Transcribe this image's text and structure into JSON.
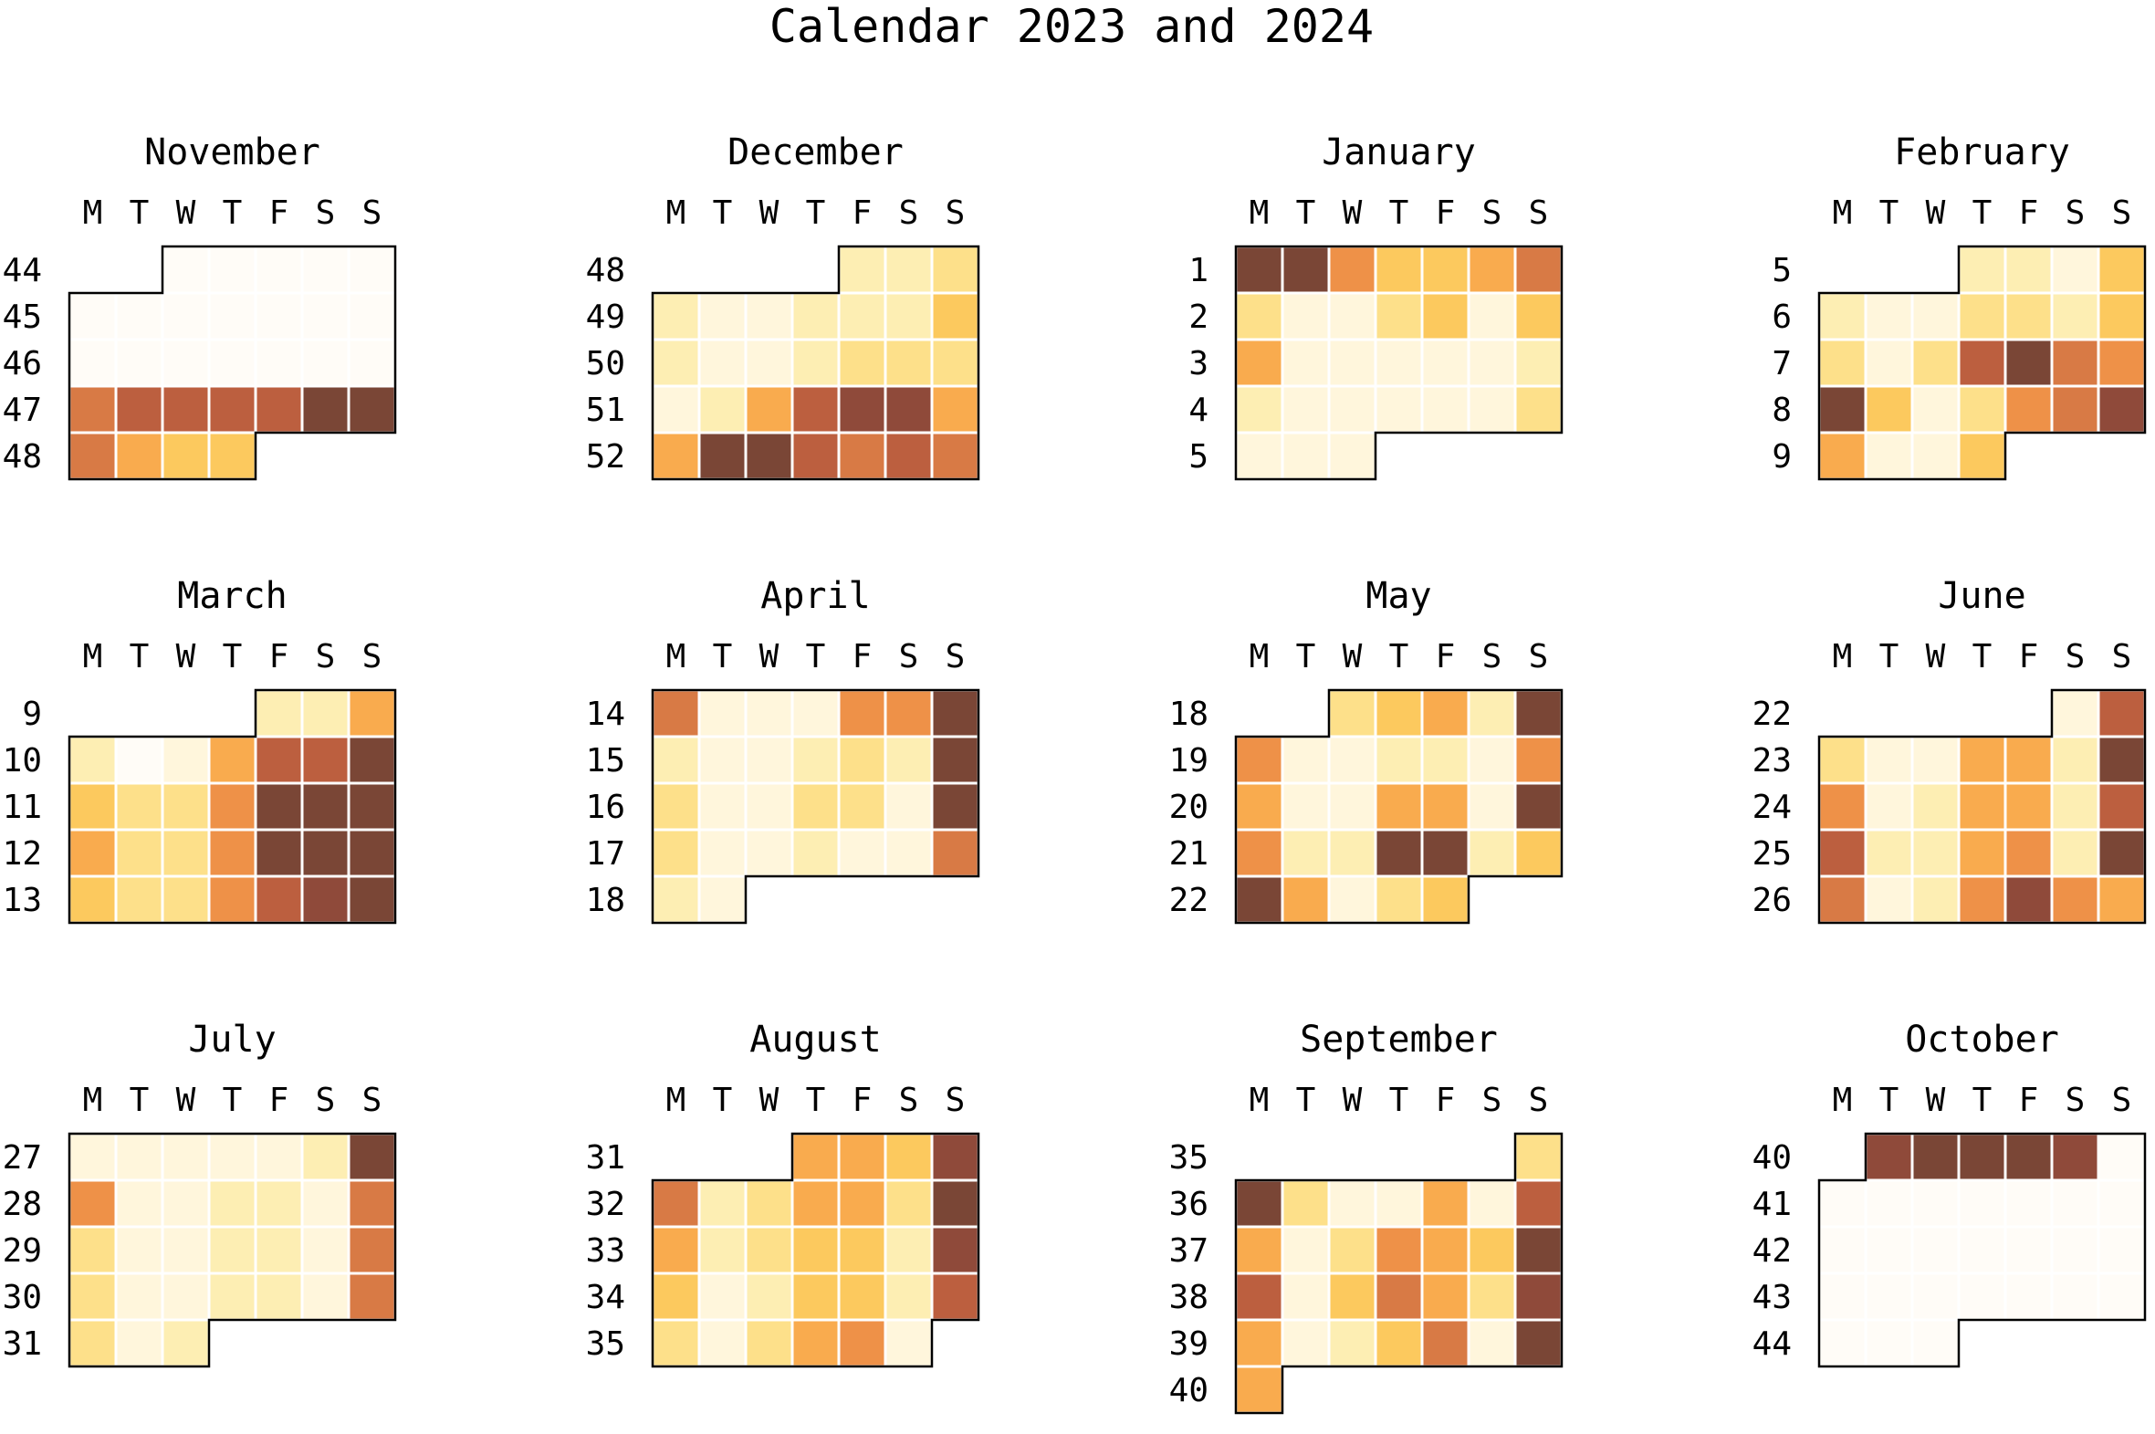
{
  "chart_data": {
    "type": "heatmap",
    "title": "Calendar 2023 and 2024",
    "weekday_labels": [
      "M",
      "T",
      "W",
      "T",
      "F",
      "S",
      "S"
    ],
    "color_scale": [
      "#fffcf7",
      "#fff6dc",
      "#fdeeb3",
      "#fde08a",
      "#fcc95e",
      "#f9ab4e",
      "#ee9148",
      "#d87a45",
      "#bc5f3f",
      "#8f4a3a",
      "#7a4636"
    ],
    "layout": {
      "columns": 4,
      "rows": 3
    },
    "months": [
      {
        "name": "November",
        "weeks": [
          44,
          45,
          46,
          47,
          48
        ],
        "days": [
          [
            null,
            null,
            0,
            0,
            0,
            0,
            0
          ],
          [
            0,
            0,
            0,
            0,
            0,
            0,
            0
          ],
          [
            0,
            0,
            0,
            0,
            0,
            0,
            0
          ],
          [
            7,
            7.5,
            7.5,
            7.5,
            8,
            9.5,
            10
          ],
          [
            7,
            5,
            4,
            4,
            null,
            null,
            null
          ]
        ]
      },
      {
        "name": "December",
        "weeks": [
          48,
          49,
          50,
          51,
          52
        ],
        "days": [
          [
            null,
            null,
            null,
            null,
            2,
            2,
            3
          ],
          [
            2,
            0.5,
            0.5,
            2,
            2,
            1.5,
            4
          ],
          [
            1.5,
            0.5,
            0.5,
            2,
            3,
            3,
            3
          ],
          [
            1,
            2,
            4.5,
            7.5,
            9,
            8.5,
            4.5
          ],
          [
            4.5,
            10,
            10,
            8,
            7,
            8,
            6.5
          ]
        ]
      },
      {
        "name": "January",
        "weeks": [
          1,
          2,
          3,
          4,
          5
        ],
        "days": [
          [
            10,
            9.5,
            5.5,
            4,
            4,
            4.5,
            6.5
          ],
          [
            3,
            1,
            1,
            3,
            3.5,
            1,
            3.5
          ],
          [
            5,
            1,
            0.5,
            1,
            1,
            0.5,
            2
          ],
          [
            1.5,
            0.5,
            1,
            1,
            1,
            0.5,
            2.5
          ],
          [
            1,
            0.5,
            1,
            null,
            null,
            null,
            null
          ]
        ]
      },
      {
        "name": "February",
        "weeks": [
          5,
          6,
          7,
          8,
          9
        ],
        "days": [
          [
            null,
            null,
            null,
            2,
            2,
            1,
            3.5
          ],
          [
            1.5,
            0.5,
            1,
            2.5,
            2.5,
            2,
            3.5
          ],
          [
            2.5,
            0.5,
            3,
            8,
            10,
            6.5,
            5.5
          ],
          [
            10,
            4,
            1,
            3,
            5.5,
            6.5,
            8.5
          ],
          [
            4.5,
            0.5,
            1,
            3.5,
            null,
            null,
            null
          ]
        ]
      },
      {
        "name": "March",
        "weeks": [
          9,
          10,
          11,
          12,
          13
        ],
        "days": [
          [
            null,
            null,
            null,
            null,
            2,
            2,
            4.5
          ],
          [
            2,
            0,
            0.5,
            4.5,
            8,
            7.5,
            9.5
          ],
          [
            4,
            3,
            3,
            5.5,
            9.5,
            10,
            10
          ],
          [
            4.5,
            3,
            3,
            5.5,
            9.5,
            10,
            10
          ],
          [
            4,
            3,
            3,
            5.5,
            8,
            9,
            10
          ]
        ]
      },
      {
        "name": "April",
        "weeks": [
          14,
          15,
          16,
          17,
          18
        ],
        "days": [
          [
            7,
            1,
            0.5,
            1,
            5.5,
            6,
            10
          ],
          [
            2,
            0.5,
            0.5,
            1.5,
            3,
            2,
            10
          ],
          [
            3,
            1,
            1,
            3,
            3,
            1,
            10
          ],
          [
            3,
            1,
            0.5,
            2,
            1,
            0.5,
            7
          ],
          [
            2,
            1,
            null,
            null,
            null,
            null,
            null
          ]
        ]
      },
      {
        "name": "May",
        "weeks": [
          18,
          19,
          20,
          21,
          22
        ],
        "days": [
          [
            null,
            null,
            2.5,
            4,
            4.5,
            2,
            10
          ],
          [
            5.5,
            1,
            1,
            2,
            1.5,
            0.5,
            5.5
          ],
          [
            4.5,
            0.5,
            0.5,
            4.5,
            5,
            0.5,
            10
          ],
          [
            5.5,
            1.5,
            1.5,
            10,
            10,
            2,
            3.5
          ],
          [
            10,
            4.5,
            1,
            3,
            3.5,
            null,
            null
          ]
        ]
      },
      {
        "name": "June",
        "weeks": [
          22,
          23,
          24,
          25,
          26
        ],
        "days": [
          [
            null,
            null,
            null,
            null,
            null,
            1,
            8
          ],
          [
            3,
            0.5,
            1,
            4.5,
            4.5,
            1.5,
            10
          ],
          [
            5.5,
            1,
            1.5,
            4.5,
            5,
            1.5,
            8
          ],
          [
            8,
            1.5,
            1.5,
            5,
            5.5,
            2,
            10
          ],
          [
            6.5,
            1,
            1.5,
            6,
            9,
            6,
            4.5
          ]
        ]
      },
      {
        "name": "July",
        "weeks": [
          27,
          28,
          29,
          30,
          31
        ],
        "days": [
          [
            1,
            1,
            1,
            0.5,
            0.5,
            2,
            10
          ],
          [
            6,
            1,
            1,
            2,
            2,
            1,
            7
          ],
          [
            3,
            0.5,
            1,
            2,
            1.5,
            1,
            6.5
          ],
          [
            3,
            0.5,
            1,
            2,
            1.5,
            1,
            6.5
          ],
          [
            3,
            1,
            1.5,
            null,
            null,
            null,
            null
          ]
        ]
      },
      {
        "name": "August",
        "weeks": [
          31,
          32,
          33,
          34,
          35
        ],
        "days": [
          [
            null,
            null,
            null,
            4.5,
            4.5,
            4,
            9
          ],
          [
            6.5,
            1.5,
            2.5,
            4.5,
            4.5,
            3,
            10
          ],
          [
            4.5,
            1.5,
            2.5,
            4,
            4,
            2,
            8.5
          ],
          [
            4,
            1,
            2,
            3.5,
            3.5,
            1.5,
            7.5
          ],
          [
            3,
            0.5,
            3,
            5,
            6,
            1,
            null
          ]
        ]
      },
      {
        "name": "September",
        "weeks": [
          35,
          36,
          37,
          38,
          39,
          40
        ],
        "days": [
          [
            null,
            null,
            null,
            null,
            null,
            null,
            2.5
          ],
          [
            10,
            2.5,
            0.5,
            1,
            4.5,
            1,
            8
          ],
          [
            4.5,
            1,
            2.5,
            5.5,
            4.5,
            3.5,
            9.5
          ],
          [
            7.5,
            1,
            3.5,
            6.5,
            5,
            2.5,
            9
          ],
          [
            4.5,
            1,
            2,
            3.5,
            6.5,
            0.5,
            10
          ],
          [
            4.5,
            null,
            null,
            null,
            null,
            null,
            null
          ]
        ]
      },
      {
        "name": "October",
        "weeks": [
          40,
          41,
          42,
          43,
          44
        ],
        "days": [
          [
            null,
            9,
            9.5,
            9.5,
            9.5,
            8.5,
            0
          ],
          [
            0,
            0,
            0,
            0,
            0,
            0,
            0
          ],
          [
            0,
            0,
            0,
            0,
            0,
            0,
            0
          ],
          [
            0,
            0,
            0,
            0,
            0,
            0,
            0
          ],
          [
            0,
            0,
            0,
            null,
            null,
            null,
            null
          ]
        ]
      }
    ]
  }
}
